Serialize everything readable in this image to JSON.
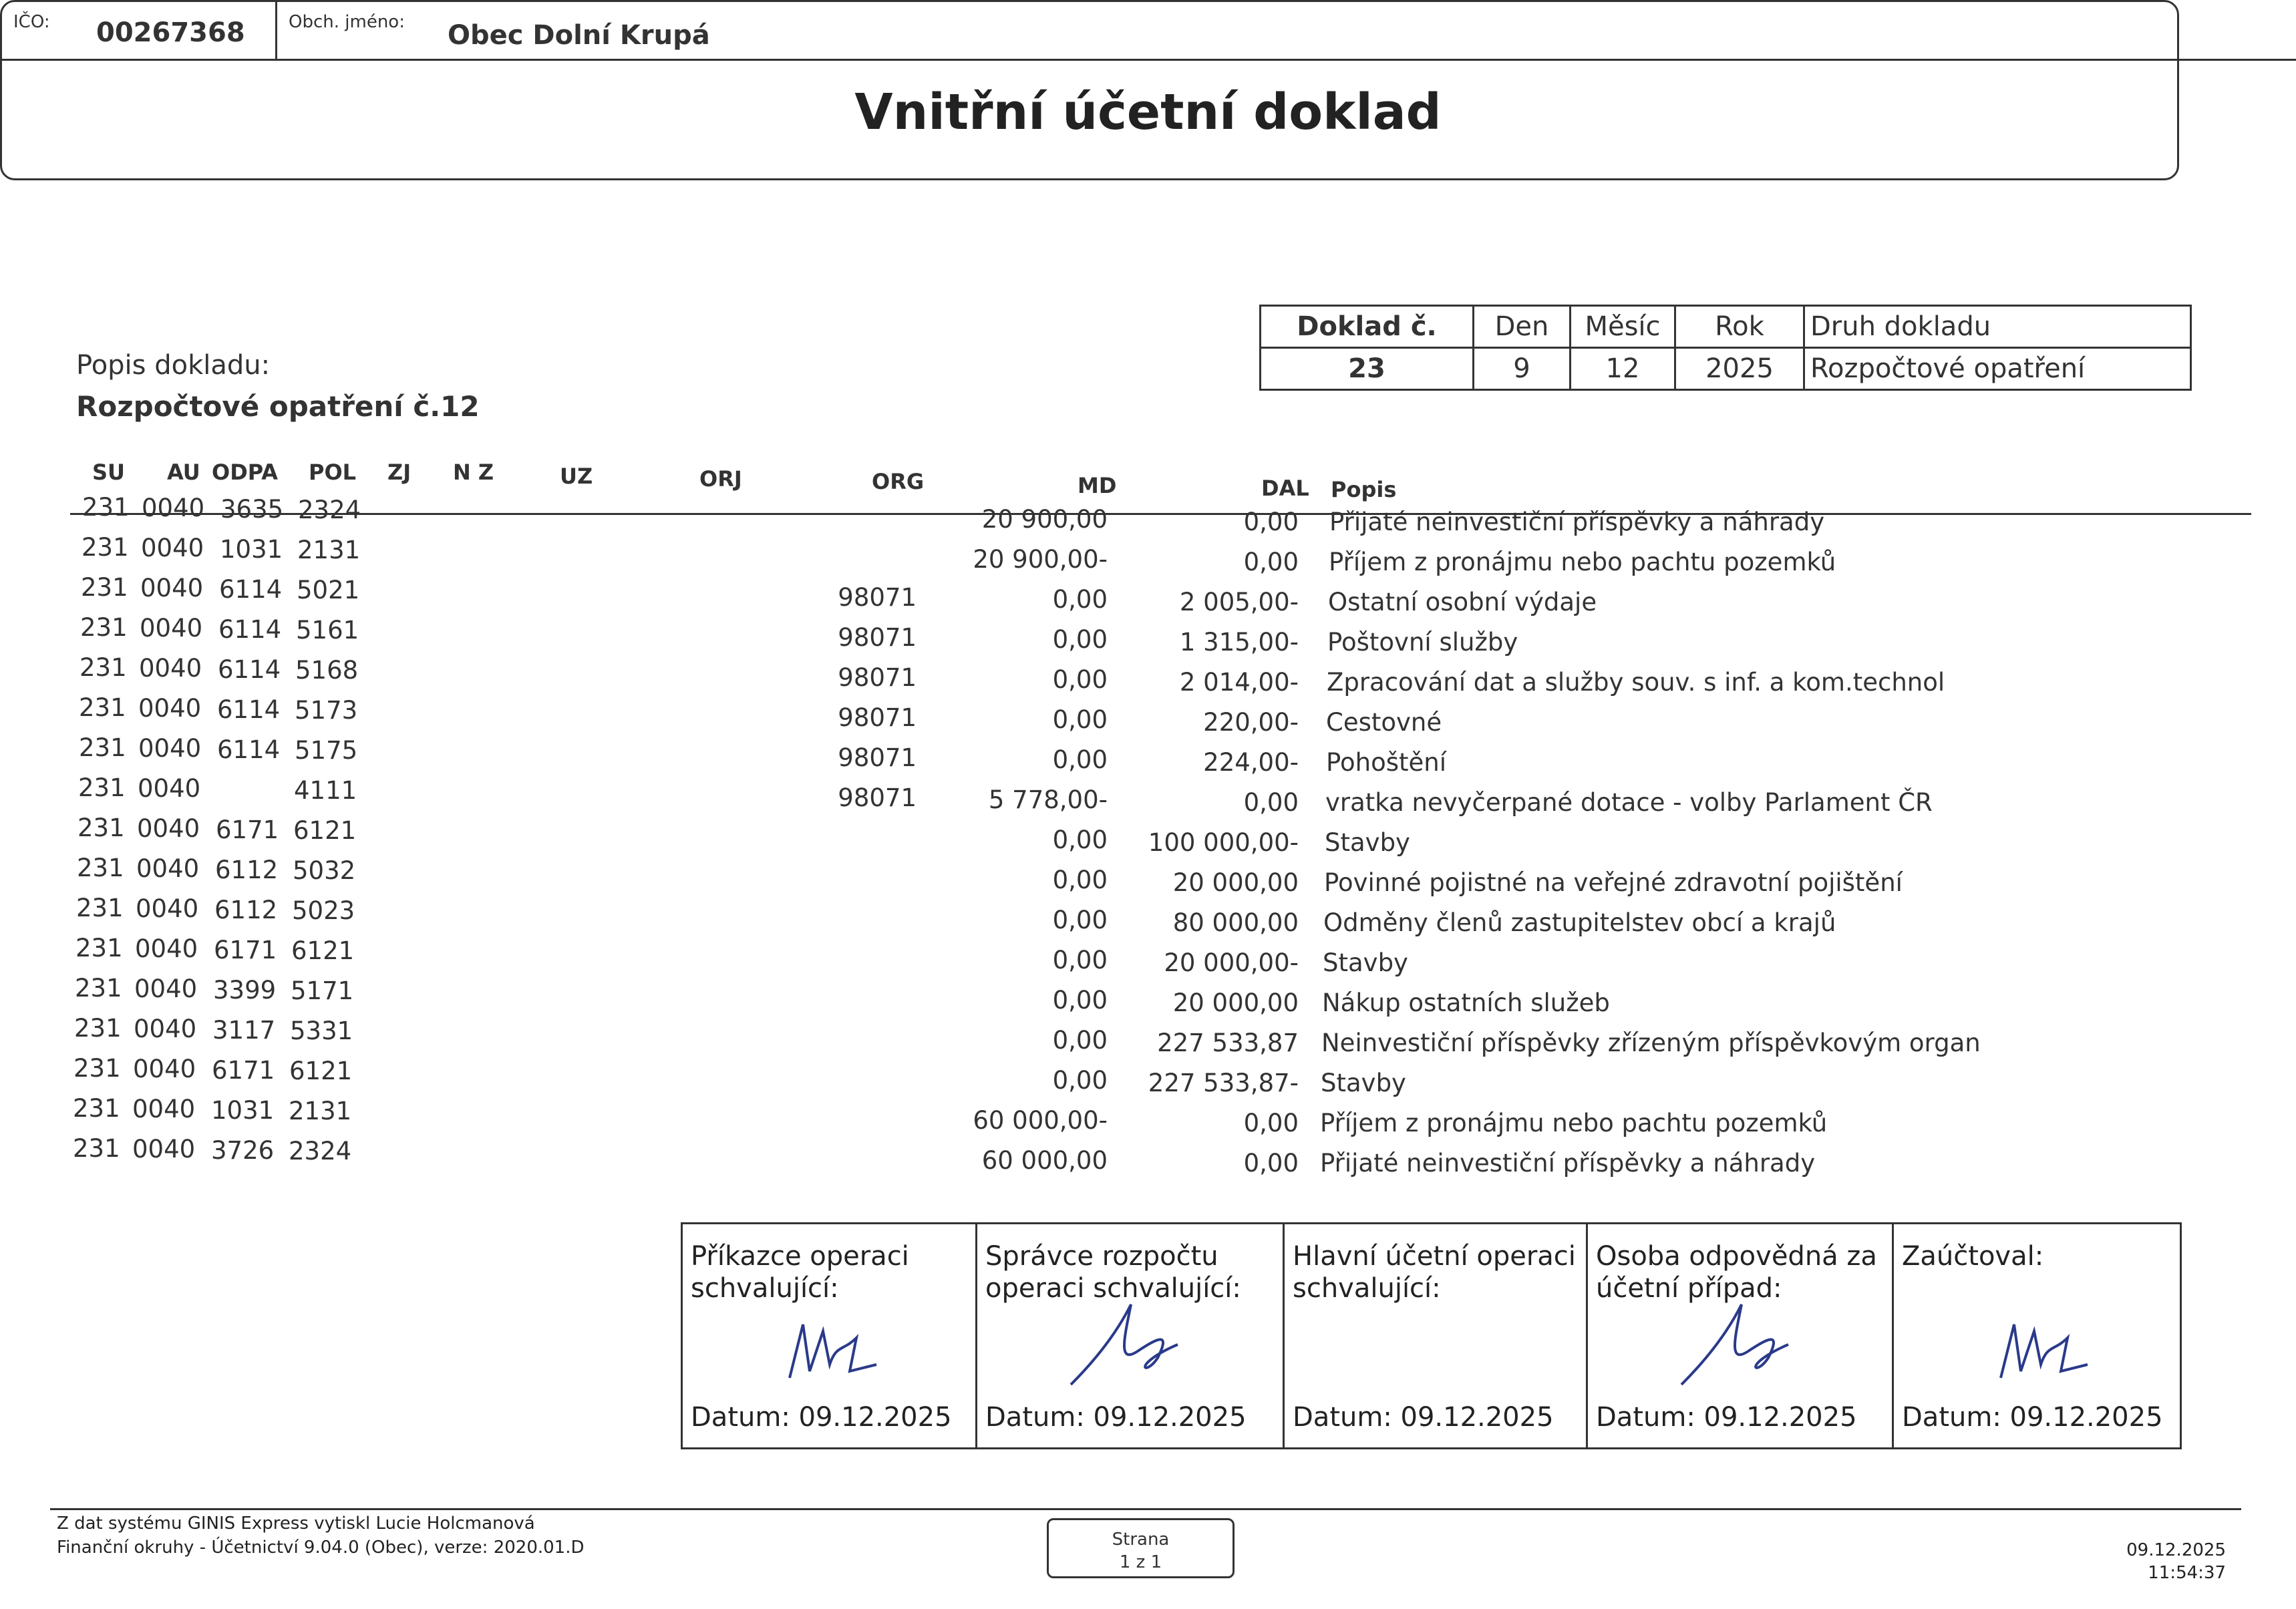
{
  "header": {
    "ico_label": "IČO:",
    "ico": "00267368",
    "name_label": "Obch. jméno:",
    "name": "Obec Dolní Krupá",
    "title": "Vnitřní účetní doklad"
  },
  "doklad": {
    "headers": [
      "Doklad č.",
      "Den",
      "Měsíc",
      "Rok",
      "Druh dokladu"
    ],
    "values": [
      "23",
      "9",
      "12",
      "2025",
      "Rozpočtové opatření"
    ]
  },
  "popis": {
    "label": "Popis dokladu:",
    "value": "Rozpočtové opatření č.12"
  },
  "columns": {
    "su": "SU",
    "au": "AU",
    "odpa": "ODPA",
    "pol": "POL",
    "zj": "ZJ",
    "nz": "N Z",
    "uz": "UZ",
    "orj": "ORJ",
    "org": "ORG",
    "md": "MD",
    "dal": "DAL",
    "popis": "Popis"
  },
  "rows": [
    {
      "su": "231",
      "au": "0040",
      "odpa": "3635",
      "pol": "2324",
      "org": "",
      "md": "20 900,00",
      "dal": "0,00",
      "popis": "Přijaté neinvestiční příspěvky a náhrady"
    },
    {
      "su": "231",
      "au": "0040",
      "odpa": "1031",
      "pol": "2131",
      "org": "",
      "md": "20 900,00-",
      "dal": "0,00",
      "popis": "Příjem z pronájmu nebo pachtu pozemků"
    },
    {
      "su": "231",
      "au": "0040",
      "odpa": "6114",
      "pol": "5021",
      "org": "98071",
      "md": "0,00",
      "dal": "2 005,00-",
      "popis": "Ostatní osobní výdaje"
    },
    {
      "su": "231",
      "au": "0040",
      "odpa": "6114",
      "pol": "5161",
      "org": "98071",
      "md": "0,00",
      "dal": "1 315,00-",
      "popis": "Poštovní služby"
    },
    {
      "su": "231",
      "au": "0040",
      "odpa": "6114",
      "pol": "5168",
      "org": "98071",
      "md": "0,00",
      "dal": "2 014,00-",
      "popis": "Zpracování dat a služby souv. s inf. a kom.technol"
    },
    {
      "su": "231",
      "au": "0040",
      "odpa": "6114",
      "pol": "5173",
      "org": "98071",
      "md": "0,00",
      "dal": "220,00-",
      "popis": "Cestovné"
    },
    {
      "su": "231",
      "au": "0040",
      "odpa": "6114",
      "pol": "5175",
      "org": "98071",
      "md": "0,00",
      "dal": "224,00-",
      "popis": "Pohoštění"
    },
    {
      "su": "231",
      "au": "0040",
      "odpa": "",
      "pol": "4111",
      "org": "98071",
      "md": "5 778,00-",
      "dal": "0,00",
      "popis": "vratka nevyčerpané dotace - volby Parlament ČR"
    },
    {
      "su": "231",
      "au": "0040",
      "odpa": "6171",
      "pol": "6121",
      "org": "",
      "md": "0,00",
      "dal": "100 000,00-",
      "popis": "Stavby"
    },
    {
      "su": "231",
      "au": "0040",
      "odpa": "6112",
      "pol": "5032",
      "org": "",
      "md": "0,00",
      "dal": "20 000,00",
      "popis": "Povinné pojistné na veřejné zdravotní pojištění"
    },
    {
      "su": "231",
      "au": "0040",
      "odpa": "6112",
      "pol": "5023",
      "org": "",
      "md": "0,00",
      "dal": "80 000,00",
      "popis": "Odměny členů zastupitelstev obcí a krajů"
    },
    {
      "su": "231",
      "au": "0040",
      "odpa": "6171",
      "pol": "6121",
      "org": "",
      "md": "0,00",
      "dal": "20 000,00-",
      "popis": "Stavby"
    },
    {
      "su": "231",
      "au": "0040",
      "odpa": "3399",
      "pol": "5171",
      "org": "",
      "md": "0,00",
      "dal": "20 000,00",
      "popis": "Nákup ostatních služeb"
    },
    {
      "su": "231",
      "au": "0040",
      "odpa": "3117",
      "pol": "5331",
      "org": "",
      "md": "0,00",
      "dal": "227 533,87",
      "popis": "Neinvestiční příspěvky zřízeným příspěvkovým organ"
    },
    {
      "su": "231",
      "au": "0040",
      "odpa": "6171",
      "pol": "6121",
      "org": "",
      "md": "0,00",
      "dal": "227 533,87-",
      "popis": "Stavby"
    },
    {
      "su": "231",
      "au": "0040",
      "odpa": "1031",
      "pol": "2131",
      "org": "",
      "md": "60 000,00-",
      "dal": "0,00",
      "popis": "Příjem z pronájmu nebo pachtu pozemků"
    },
    {
      "su": "231",
      "au": "0040",
      "odpa": "3726",
      "pol": "2324",
      "org": "",
      "md": "60 000,00",
      "dal": "0,00",
      "popis": "Přijaté neinvestiční příspěvky a náhrady"
    }
  ],
  "signatures": [
    {
      "title": "Příkazce operaci schvalující:",
      "date": "Datum: 09.12.2025",
      "signed": true
    },
    {
      "title": "Správce rozpočtu operaci schvalující:",
      "date": "Datum: 09.12.2025",
      "signed": true
    },
    {
      "title": "Hlavní účetní operaci schvalující:",
      "date": "Datum: 09.12.2025",
      "signed": false
    },
    {
      "title": "Osoba odpovědná za účetní případ:",
      "date": "Datum: 09.12.2025",
      "signed": true
    },
    {
      "title": "Zaúčtoval:",
      "date": "Datum: 09.12.2025",
      "signed": true
    }
  ],
  "footer": {
    "line1": "Z dat systému GINIS Express vytiskl Lucie Holcmanová",
    "line2": "Finanční okruhy - Účetnictví 9.04.0 (Obec), verze: 2020.01.D",
    "page_label": "Strana",
    "page": "1 z 1",
    "date": "09.12.2025",
    "time": "11:54:37"
  },
  "colors": {
    "ink": "#333333",
    "signature": "#2a3a8a"
  }
}
